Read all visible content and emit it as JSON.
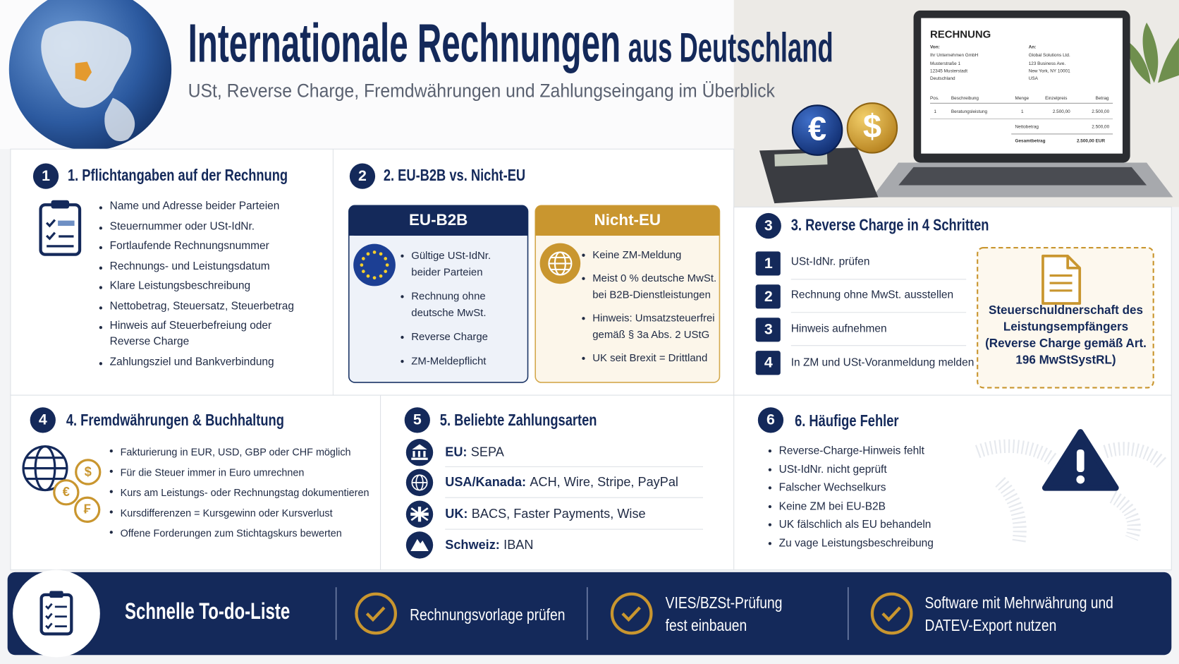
{
  "header": {
    "title": "Internationale Rechnungen",
    "title_suffix": "aus Deutschland",
    "subtitle": "USt, Reverse Charge, Fremdwährungen und Zahlungseingang im Überblick"
  },
  "invoice": {
    "title": "RECHNUNG",
    "from_label": "Von:",
    "from_lines": [
      "Ihr Unternehmen GmbH",
      "Musterstraße 1",
      "12345 Musterstadt",
      "Deutschland"
    ],
    "to_label": "An:",
    "to_lines": [
      "Global Solutions Ltd.",
      "123 Business Ave.",
      "New York, NY 10001",
      "USA"
    ],
    "columns": [
      "Pos.",
      "Beschreibung",
      "Menge",
      "Einzelpreis",
      "Betrag"
    ],
    "row": [
      "1",
      "Beratungsleistung",
      "1",
      "2.500,00",
      "2.500,00"
    ],
    "net_label": "Nettobetrag",
    "net_value": "2.500,00",
    "total_label": "Gesamtbetrag",
    "total_value": "2.500,00 EUR"
  },
  "coins": [
    "€",
    "$"
  ],
  "mandatory": {
    "badge": "1",
    "title": "1. Pflichtangaben auf der Rechnung",
    "items": [
      "Name und Adresse beider Parteien",
      "Steuernummer oder USt-IdNr.",
      "Fortlaufende Rechnungsnummer",
      "Rechnungs- und Leistungsdatum",
      "Klare Leistungsbeschreibung",
      "Nettobetrag, Steuersatz, Steuerbetrag",
      "Hinweis auf Steuerbefreiung oder Reverse Charge",
      "Zahlungsziel und Bankverbindung"
    ]
  },
  "comparison": {
    "badge": "2",
    "title": "2. EU-B2B vs. Nicht-EU",
    "eu": {
      "title": "EU-B2B",
      "items": [
        "Gültige USt-IdNr. beider Parteien",
        "Rechnung ohne deutsche MwSt.",
        "Reverse Charge",
        "ZM-Meldepflicht"
      ]
    },
    "non_eu": {
      "title": "Nicht-EU",
      "items": [
        "Keine ZM-Meldung",
        "Meist 0 % deutsche MwSt. bei B2B-Dienstleistungen",
        "Hinweis: Umsatzsteuerfrei gemäß § 3a Abs. 2 UStG",
        "UK seit Brexit = Drittland"
      ]
    }
  },
  "reverse_charge": {
    "badge": "3",
    "title": "3. Reverse Charge in 4 Schritten",
    "steps": [
      {
        "num": "1",
        "text": "USt-IdNr. prüfen"
      },
      {
        "num": "2",
        "text": "Rechnung ohne MwSt. ausstellen"
      },
      {
        "num": "3",
        "text": "Hinweis aufnehmen"
      },
      {
        "num": "4",
        "text": "In ZM und USt-Voranmeldung melden"
      }
    ],
    "callout": "Steuerschuldnerschaft des Leistungsempfängers (Reverse Charge gemäß Art. 196 MwStSystRL)"
  },
  "currencies": {
    "badge": "4",
    "title": "4. Fremdwährungen & Buchhaltung",
    "icon_symbols": [
      "$",
      "€",
      "₣"
    ],
    "items": [
      "Fakturierung in EUR, USD, GBP oder CHF möglich",
      "Für die Steuer immer in Euro umrechnen",
      "Kurs am Leistungs- oder Rechnungstag dokumentieren",
      "Kursdifferenzen = Kursgewinn oder Kursverlust",
      "Offene Forderungen zum Stichtagskurs bewerten"
    ]
  },
  "payments": {
    "badge": "5",
    "title": "5. Beliebte Zahlungsarten",
    "rows": [
      {
        "label": "EU:",
        "value": "SEPA"
      },
      {
        "label": "USA/Kanada:",
        "value": "ACH, Wire, Stripe, PayPal"
      },
      {
        "label": "UK:",
        "value": "BACS, Faster Payments, Wise"
      },
      {
        "label": "Schweiz:",
        "value": "IBAN"
      }
    ]
  },
  "mistakes": {
    "badge": "6",
    "title": "6. Häufige Fehler",
    "items": [
      "Reverse-Charge-Hinweis fehlt",
      "USt-IdNr. nicht geprüft",
      "Falscher Wechselkurs",
      "Keine ZM bei EU-B2B",
      "UK fälschlich als EU behandeln",
      "Zu vage Leistungsbeschreibung"
    ]
  },
  "todo": {
    "title": "Schnelle To-do-Liste",
    "items": [
      "Rechnungsvorlage prüfen",
      "VIES/BZSt-Prüfung fest einbauen",
      "Software mit Mehrwährung und DATEV-Export nutzen"
    ]
  }
}
